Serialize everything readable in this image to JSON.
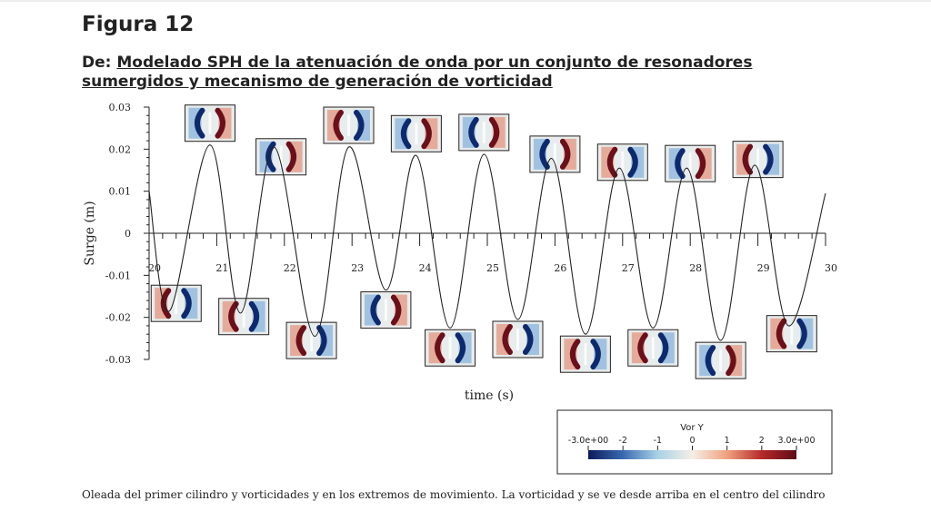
{
  "page": {
    "figure_label": "Figura 12",
    "source_prefix": "De: ",
    "source_title": "Modelado SPH de la atenuación de onda por un conjunto de resonadores sumergidos y mecanismo de generación de vorticidad",
    "caption": "Oleada del primer cilindro y vorticidades y en los extremos de movimiento. La vorticidad y se ve desde arriba en el centro del cilindro"
  },
  "chart_data": {
    "type": "line",
    "xlabel": "time (s)",
    "ylabel": "Surge (m)",
    "xlim": [
      20,
      30
    ],
    "ylim": [
      -0.03,
      0.03
    ],
    "xticks": [
      "20",
      "21",
      "22",
      "23",
      "24",
      "25",
      "26",
      "27",
      "28",
      "29",
      "30"
    ],
    "yticks": [
      "0.03",
      "0.02",
      "0.01",
      "0",
      "-0.01",
      "-0.02",
      "-0.03"
    ],
    "grid": false,
    "series": [
      {
        "color": "#222222",
        "x": [
          20.0,
          20.3,
          20.9,
          21.35,
          21.85,
          22.45,
          22.95,
          23.5,
          23.95,
          24.45,
          24.95,
          25.45,
          25.95,
          26.45,
          26.95,
          27.45,
          27.95,
          28.45,
          28.95,
          29.45,
          30.0
        ],
        "y": [
          0.01,
          -0.0185,
          0.021,
          -0.019,
          0.0205,
          -0.0245,
          0.0205,
          -0.0135,
          0.0185,
          -0.0225,
          0.0188,
          -0.0205,
          0.0178,
          -0.024,
          0.0155,
          -0.0225,
          0.0155,
          -0.0255,
          0.0162,
          -0.022,
          0.0095
        ]
      }
    ],
    "colorbar": {
      "title": "Vor Y",
      "labels": [
        "-3.0e+00",
        "-2",
        "-1",
        "0",
        "1",
        "2",
        "3.0e+00"
      ],
      "colors": [
        "#0b1b5c",
        "#3a6ab0",
        "#a9d2e6",
        "#f5eee6",
        "#efa27f",
        "#b52a2a",
        "#5e0b16"
      ]
    },
    "vorticity_snapshots": [
      {
        "time": 20.4,
        "extreme": "min",
        "orientation": "positive"
      },
      {
        "time": 20.9,
        "extreme": "max",
        "orientation": "negative"
      },
      {
        "time": 21.4,
        "extreme": "min",
        "orientation": "positive"
      },
      {
        "time": 21.95,
        "extreme": "max",
        "orientation": "negative"
      },
      {
        "time": 22.4,
        "extreme": "min",
        "orientation": "positive"
      },
      {
        "time": 22.95,
        "extreme": "max",
        "orientation": "positive"
      },
      {
        "time": 23.5,
        "extreme": "min",
        "orientation": "negative"
      },
      {
        "time": 23.95,
        "extreme": "max",
        "orientation": "negative"
      },
      {
        "time": 24.45,
        "extreme": "min",
        "orientation": "positive"
      },
      {
        "time": 24.95,
        "extreme": "max",
        "orientation": "negative"
      },
      {
        "time": 25.45,
        "extreme": "min",
        "orientation": "positive"
      },
      {
        "time": 26.0,
        "extreme": "max",
        "orientation": "negative"
      },
      {
        "time": 26.45,
        "extreme": "min",
        "orientation": "positive"
      },
      {
        "time": 27.0,
        "extreme": "max",
        "orientation": "positive"
      },
      {
        "time": 27.45,
        "extreme": "min",
        "orientation": "positive"
      },
      {
        "time": 28.0,
        "extreme": "max",
        "orientation": "negative"
      },
      {
        "time": 28.45,
        "extreme": "min",
        "orientation": "negative"
      },
      {
        "time": 29.0,
        "extreme": "max",
        "orientation": "positive"
      },
      {
        "time": 29.5,
        "extreme": "min",
        "orientation": "positive"
      }
    ]
  }
}
